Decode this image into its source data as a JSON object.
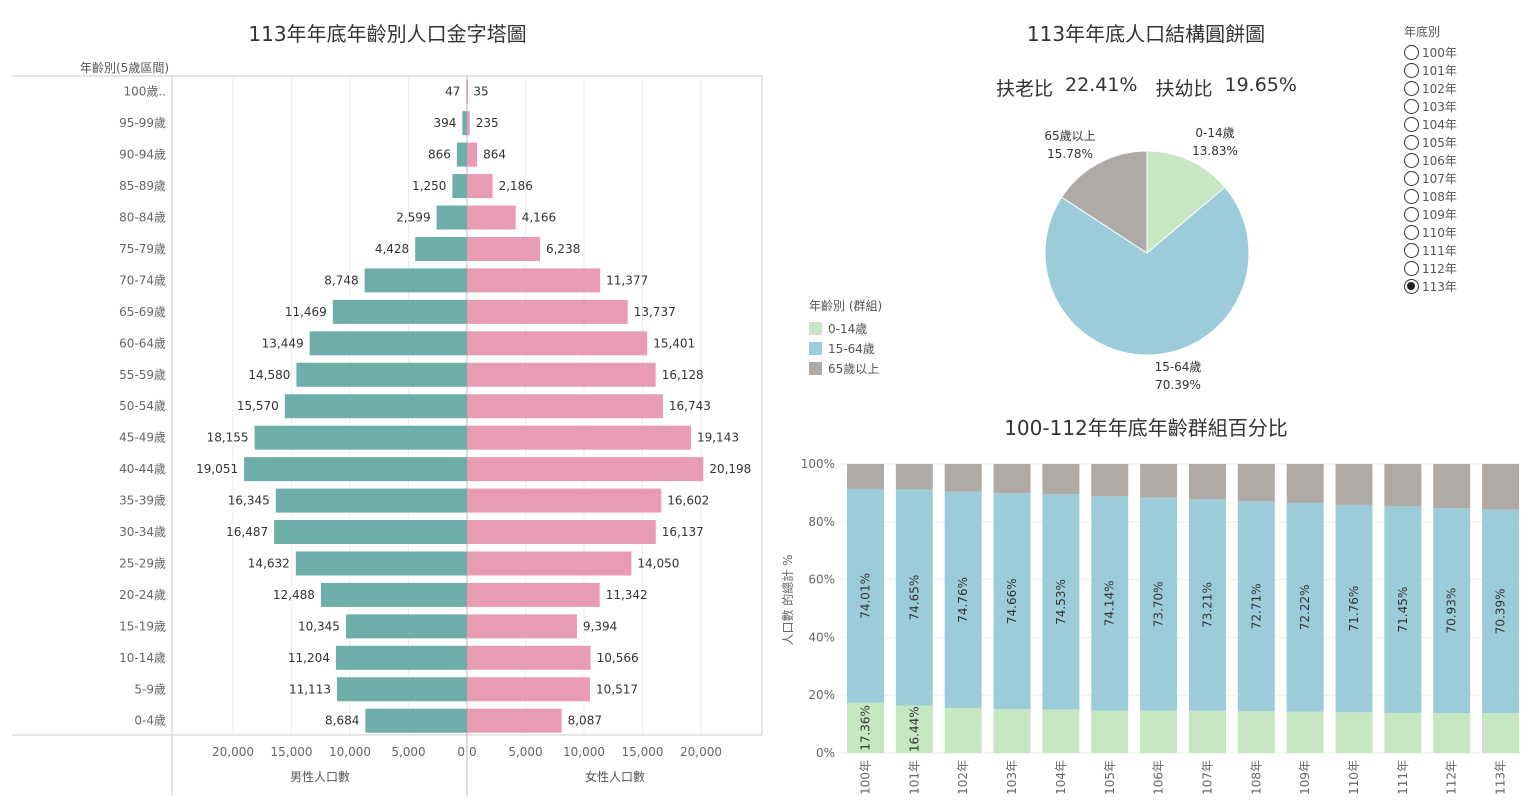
{
  "pyramid": {
    "title": "113年年底年齡別人口金字塔圖",
    "axis_header": "年齡別(5歲區間)",
    "male_label": "男性人口數",
    "female_label": "女性人口數",
    "ticks": [
      "20,000",
      "15,000",
      "10,000",
      "5,000",
      "0"
    ],
    "female_ticks": [
      "0",
      "5,000",
      "10,000",
      "15,000",
      "20,000"
    ]
  },
  "pie": {
    "title": "113年年底人口結構圓餅圖",
    "ratio_old_label": "扶老比",
    "ratio_old_value": "22.41%",
    "ratio_young_label": "扶幼比",
    "ratio_young_value": "19.65%",
    "legend_title": "年齡別 (群組)",
    "slice_labels": [
      {
        "name": "0-14歲",
        "pct": "13.83%"
      },
      {
        "name": "15-64歲",
        "pct": "70.39%"
      },
      {
        "name": "65歲以上",
        "pct": "15.78%"
      }
    ]
  },
  "years_filter": {
    "title": "年底別",
    "items": [
      "100年",
      "101年",
      "102年",
      "103年",
      "104年",
      "105年",
      "106年",
      "107年",
      "108年",
      "109年",
      "110年",
      "111年",
      "112年",
      "113年"
    ],
    "selected": "113年"
  },
  "stack": {
    "title": "100-112年年底年齡群組百分比",
    "ylabel": "人口數 的總計 %",
    "yticks": [
      "0%",
      "20%",
      "40%",
      "60%",
      "80%",
      "100%"
    ]
  },
  "colors": {
    "male": "#6FADA8",
    "female": "#E89CB4",
    "young": "#C6E7C1",
    "working": "#9CCCD9",
    "old": "#B0AAA7"
  },
  "chart_data": [
    {
      "type": "bar",
      "orientation": "horizontal",
      "title": "113年年底年齡別人口金字塔圖",
      "categories": [
        "100歲..",
        "95-99歲",
        "90-94歲",
        "85-89歲",
        "80-84歲",
        "75-79歲",
        "70-74歲",
        "65-69歲",
        "60-64歲",
        "55-59歲",
        "50-54歲",
        "45-49歲",
        "40-44歲",
        "35-39歲",
        "30-34歲",
        "25-29歲",
        "20-24歲",
        "15-19歲",
        "10-14歲",
        "5-9歲",
        "0-4歲"
      ],
      "series": [
        {
          "name": "男性人口數",
          "values": [
            47,
            394,
            866,
            1250,
            2599,
            4428,
            8748,
            11469,
            13449,
            14580,
            15570,
            18155,
            19051,
            16345,
            16487,
            14632,
            12488,
            10345,
            11204,
            11113,
            8684
          ],
          "labels": [
            "47",
            "394",
            "866",
            "1,250",
            "2,599",
            "4,428",
            "8,748",
            "11,469",
            "13,449",
            "14,580",
            "15,570",
            "18,155",
            "19,051",
            "16,345",
            "16,487",
            "14,632",
            "12,488",
            "10,345",
            "11,204",
            "11,113",
            "8,684"
          ]
        },
        {
          "name": "女性人口數",
          "values": [
            35,
            235,
            864,
            2186,
            4166,
            6238,
            11377,
            13737,
            15401,
            16128,
            16743,
            19143,
            20198,
            16602,
            16137,
            14050,
            11342,
            9394,
            10566,
            10517,
            8087
          ],
          "labels": [
            "35",
            "235",
            "864",
            "2,186",
            "4,166",
            "6,238",
            "11,377",
            "13,737",
            "15,401",
            "16,128",
            "16,743",
            "19,143",
            "20,198",
            "16,602",
            "16,137",
            "14,050",
            "11,342",
            "9,394",
            "10,566",
            "10,517",
            "8,087"
          ]
        }
      ],
      "xlim": [
        0,
        25000
      ]
    },
    {
      "type": "pie",
      "title": "113年年底人口結構圓餅圖",
      "categories": [
        "0-14歲",
        "15-64歲",
        "65歲以上"
      ],
      "values": [
        13.83,
        70.39,
        15.78
      ],
      "legend": "left"
    },
    {
      "type": "bar",
      "stacked": true,
      "title": "100-112年年底年齡群組百分比",
      "ylabel": "人口數 的總計 %",
      "ylim": [
        0,
        100
      ],
      "categories": [
        "100年",
        "101年",
        "102年",
        "103年",
        "104年",
        "105年",
        "106年",
        "107年",
        "108年",
        "109年",
        "110年",
        "111年",
        "112年",
        "113年"
      ],
      "series": [
        {
          "name": "0-14歲",
          "values": [
            17.36,
            16.44,
            15.6,
            15.2,
            15.0,
            14.7,
            14.6,
            14.6,
            14.4,
            14.3,
            14.1,
            13.9,
            13.8,
            13.83
          ],
          "labels": [
            "17.36%",
            "16.44%",
            "",
            "",
            "",
            "",
            "",
            "",
            "",
            "",
            "",
            "",
            "",
            ""
          ]
        },
        {
          "name": "15-64歲",
          "values": [
            74.01,
            74.65,
            74.76,
            74.66,
            74.53,
            74.14,
            73.7,
            73.21,
            72.71,
            72.22,
            71.76,
            71.45,
            70.93,
            70.39
          ],
          "labels": [
            "74.01%",
            "74.65%",
            "74.76%",
            "74.66%",
            "74.53%",
            "74.14%",
            "73.70%",
            "73.21%",
            "72.71%",
            "72.22%",
            "71.76%",
            "71.45%",
            "70.93%",
            "70.39%"
          ]
        },
        {
          "name": "65歲以上",
          "values": [
            8.63,
            8.91,
            9.64,
            10.14,
            10.47,
            11.16,
            11.7,
            12.19,
            12.89,
            13.48,
            14.14,
            14.65,
            15.27,
            15.78
          ]
        }
      ]
    }
  ]
}
